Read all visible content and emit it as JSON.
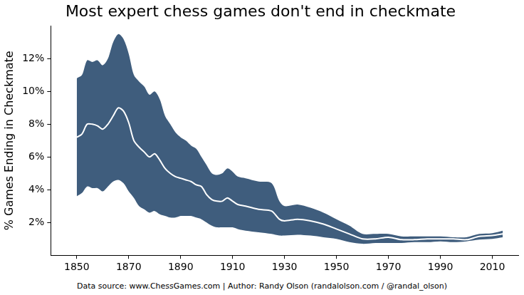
{
  "chart_data": {
    "type": "line",
    "title": "Most expert chess games don't end in checkmate",
    "y_label": "% Games Ending in Checkmate",
    "source": "Data source: www.ChessGames.com | Author: Randy Olson (randalolson.com / @randal_olson)",
    "x": [
      1850,
      1852,
      1854,
      1856,
      1858,
      1860,
      1862,
      1864,
      1866,
      1868,
      1870,
      1872,
      1874,
      1876,
      1878,
      1880,
      1882,
      1884,
      1886,
      1888,
      1890,
      1892,
      1894,
      1896,
      1898,
      1900,
      1902,
      1904,
      1906,
      1908,
      1910,
      1912,
      1915,
      1920,
      1925,
      1928,
      1930,
      1935,
      1940,
      1945,
      1950,
      1955,
      1960,
      1965,
      1970,
      1975,
      1980,
      1985,
      1990,
      1995,
      2000,
      2005,
      2010,
      2014
    ],
    "series": [
      {
        "type": "band",
        "color": "#3f5d7d",
        "upper": [
          10.8,
          11.0,
          11.9,
          11.8,
          11.9,
          11.6,
          12.0,
          13.0,
          13.5,
          13.2,
          12.3,
          11.0,
          10.6,
          10.3,
          9.8,
          10.0,
          9.5,
          8.5,
          8.0,
          7.5,
          7.2,
          7.0,
          6.7,
          6.5,
          6.0,
          5.5,
          5.0,
          4.9,
          5.0,
          5.3,
          5.1,
          4.8,
          4.7,
          4.5,
          4.4,
          3.3,
          3.0,
          3.1,
          2.9,
          2.6,
          2.2,
          1.8,
          1.3,
          1.3,
          1.3,
          1.15,
          1.15,
          1.15,
          1.15,
          1.1,
          1.1,
          1.3,
          1.35,
          1.5
        ],
        "lower": [
          3.6,
          3.8,
          4.2,
          4.1,
          4.1,
          3.9,
          4.2,
          4.5,
          4.6,
          4.4,
          3.9,
          3.5,
          3.0,
          2.8,
          2.6,
          2.7,
          2.5,
          2.4,
          2.3,
          2.3,
          2.4,
          2.4,
          2.4,
          2.3,
          2.2,
          2.0,
          1.8,
          1.7,
          1.7,
          1.7,
          1.7,
          1.6,
          1.5,
          1.4,
          1.3,
          1.2,
          1.2,
          1.25,
          1.2,
          1.1,
          1.0,
          0.8,
          0.7,
          0.75,
          0.75,
          0.75,
          0.8,
          0.8,
          0.85,
          0.8,
          0.85,
          0.95,
          1.0,
          1.1
        ]
      },
      {
        "type": "line",
        "color": "#ffffff",
        "values": [
          7.2,
          7.4,
          8.0,
          8.0,
          7.9,
          7.7,
          8.0,
          8.5,
          9.0,
          8.8,
          8.1,
          7.0,
          6.6,
          6.3,
          6.0,
          6.2,
          5.8,
          5.3,
          5.0,
          4.8,
          4.7,
          4.6,
          4.5,
          4.3,
          4.2,
          3.7,
          3.4,
          3.3,
          3.3,
          3.5,
          3.3,
          3.1,
          3.0,
          2.8,
          2.7,
          2.2,
          2.1,
          2.2,
          2.1,
          1.9,
          1.6,
          1.3,
          1.0,
          1.0,
          1.1,
          0.95,
          0.95,
          1.0,
          1.0,
          1.0,
          0.95,
          1.15,
          1.2,
          1.3
        ]
      }
    ],
    "xlim": [
      1840,
      2020
    ],
    "xticks": [
      1850,
      1870,
      1890,
      1910,
      1930,
      1950,
      1970,
      1990,
      2010
    ],
    "ylim": [
      0,
      14
    ],
    "yticks": [
      {
        "value": 2,
        "label": "2%"
      },
      {
        "value": 4,
        "label": "4%"
      },
      {
        "value": 6,
        "label": "6%"
      },
      {
        "value": 8,
        "label": "8%"
      },
      {
        "value": 10,
        "label": "10%"
      },
      {
        "value": 12,
        "label": "12%"
      }
    ],
    "grid": false
  }
}
